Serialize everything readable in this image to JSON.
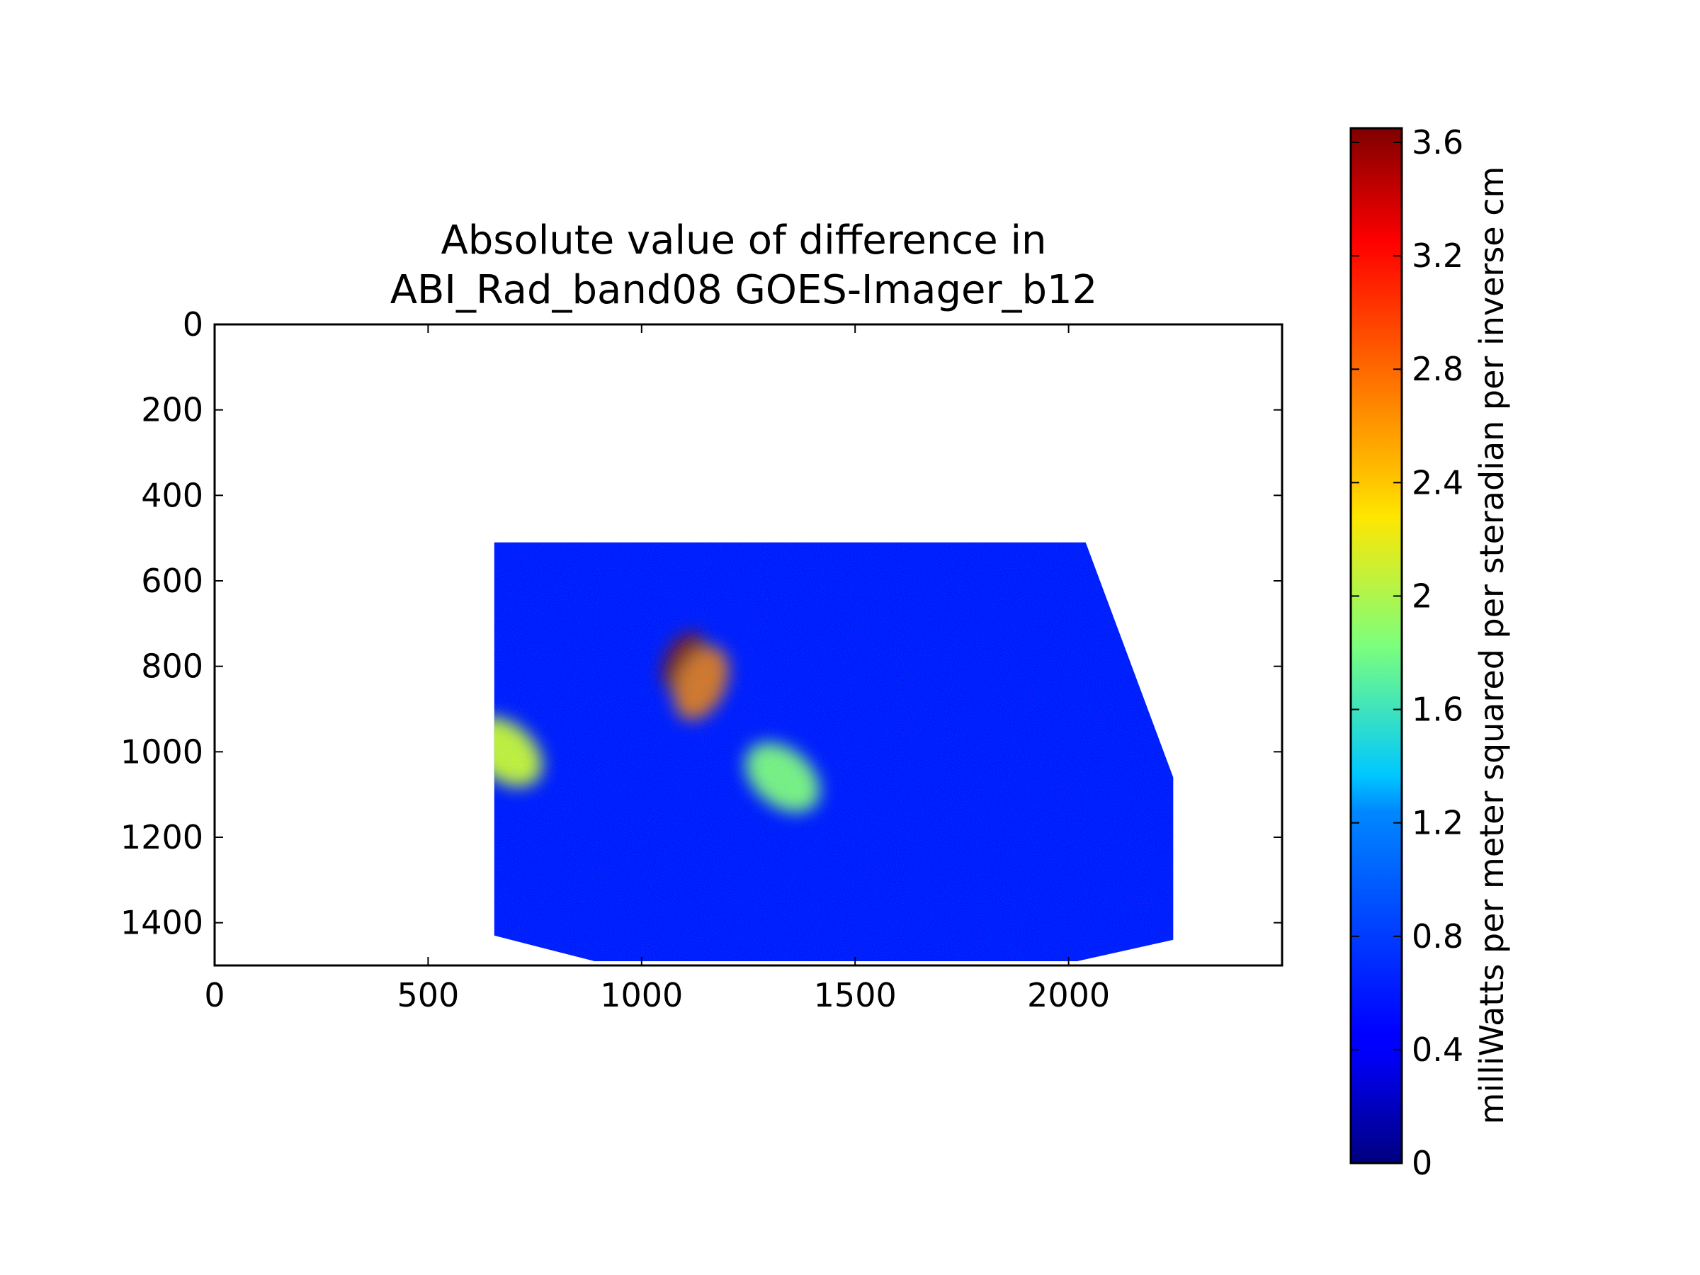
{
  "chart_data": {
    "type": "heatmap",
    "title": "Absolute value of difference in\nABI_Rad_band08 GOES-Imager_b12",
    "title_lines": [
      "Absolute value of difference in",
      "ABI_Rad_band08 GOES-Imager_b12"
    ],
    "xlabel": "",
    "ylabel": "",
    "xlim": [
      0,
      2500
    ],
    "ylim": [
      1500,
      0
    ],
    "y_inverted": true,
    "x_ticks": [
      0,
      500,
      1000,
      1500,
      2000
    ],
    "x_tick_labels": [
      "0",
      "500",
      "1000",
      "1500",
      "2000"
    ],
    "y_ticks": [
      0,
      200,
      400,
      600,
      800,
      1000,
      1200,
      1400
    ],
    "y_tick_labels": [
      "0",
      "200",
      "400",
      "600",
      "800",
      "1000",
      "1200",
      "1400"
    ],
    "colormap": "jet",
    "colorbar": {
      "label": "milliWatts per meter squared per steradian per inverse cm",
      "range": [
        0,
        3.65
      ],
      "ticks": [
        0,
        0.4,
        0.8,
        1.2,
        1.6,
        2,
        2.4,
        2.8,
        3.2,
        3.6
      ],
      "tick_labels": [
        "0",
        "0.4",
        "0.8",
        "1.2",
        "1.6",
        "2",
        "2.4",
        "2.8",
        "3.2",
        "3.6"
      ],
      "placement": "right"
    },
    "data_region_outline": [
      [
        655,
        510
      ],
      [
        2040,
        510
      ],
      [
        2245,
        1060
      ],
      [
        2245,
        1440
      ],
      [
        2020,
        1490
      ],
      [
        890,
        1490
      ],
      [
        655,
        1430
      ]
    ],
    "features": [
      {
        "label": "hotspot",
        "center": [
          1100,
          790
        ],
        "value": 3.6
      },
      {
        "label": "hotspot",
        "center": [
          1140,
          840
        ],
        "value": 2.8
      },
      {
        "label": "band",
        "center": [
          680,
          1000
        ],
        "value": 2.2
      },
      {
        "label": "band",
        "center": [
          1330,
          1060
        ],
        "value": 1.9
      }
    ],
    "background_value": 0.45,
    "grid": false
  }
}
